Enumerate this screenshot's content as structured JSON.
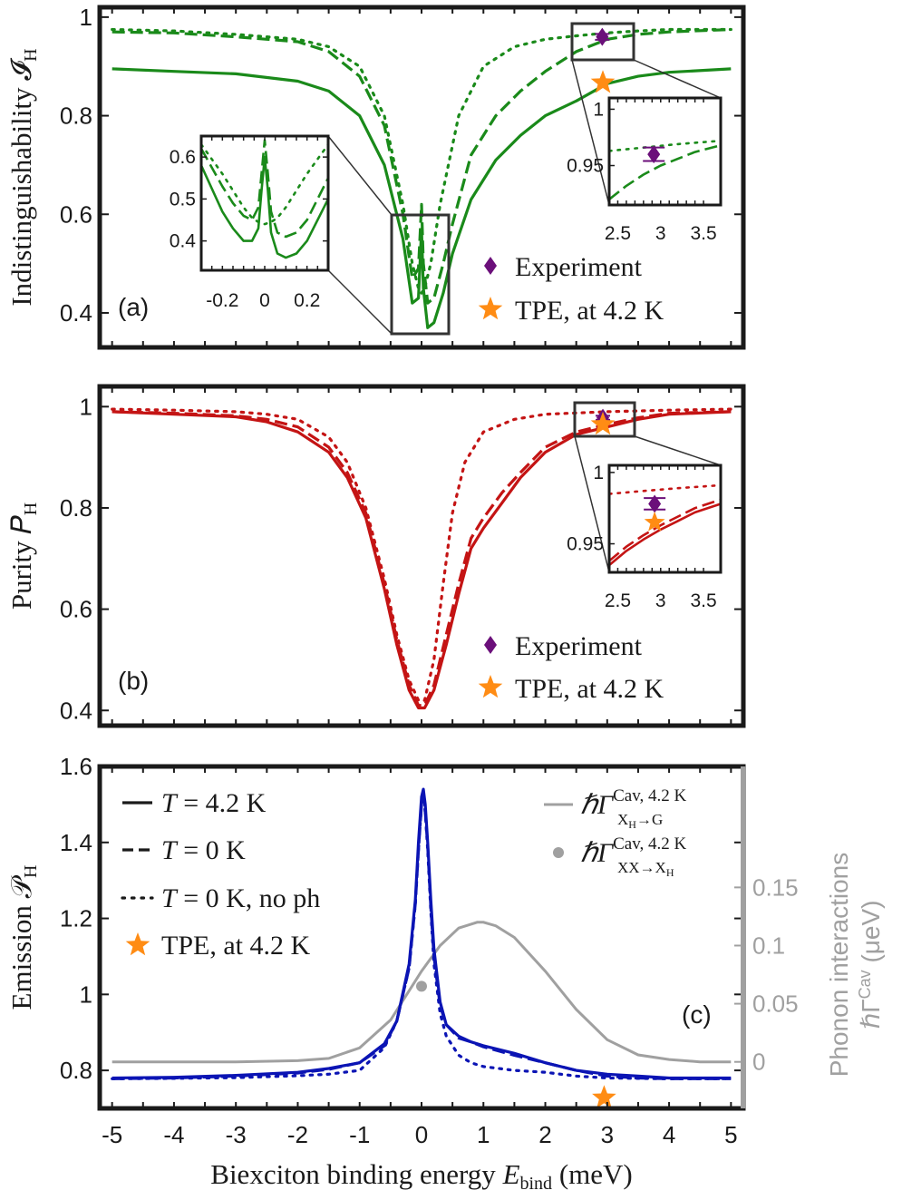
{
  "colors": {
    "green": "#1a8a1a",
    "red": "#c41414",
    "blue": "#0b14b4",
    "gray": "#a0a0a0",
    "purple": "#6b0f7a",
    "orange": "#ff8c14"
  },
  "chart_data": [
    {
      "type": "line",
      "panel_label": "(a)",
      "ylabel": "Indistinguishability 𝓘",
      "ylabel_sub": "H",
      "xlim": [
        -5.2,
        5.2
      ],
      "ylim": [
        0.33,
        1.02
      ],
      "yticks": [
        0.4,
        0.6,
        0.8,
        1
      ],
      "ytick_labels": [
        "0.4",
        "0.6",
        "0.8",
        "1"
      ],
      "series": [
        {
          "style": "solid",
          "x": [
            -5.0,
            -4.0,
            -3.0,
            -2.0,
            -1.5,
            -1.0,
            -0.6,
            -0.3,
            -0.15,
            -0.05,
            0.0,
            0.03,
            0.1,
            0.2,
            0.35,
            0.5,
            0.8,
            1.2,
            1.6,
            2.0,
            2.5,
            3.0,
            3.5,
            4.0,
            5.0
          ],
          "y": [
            0.895,
            0.89,
            0.885,
            0.87,
            0.85,
            0.8,
            0.7,
            0.55,
            0.42,
            0.43,
            0.57,
            0.45,
            0.37,
            0.38,
            0.44,
            0.52,
            0.63,
            0.71,
            0.76,
            0.8,
            0.83,
            0.865,
            0.88,
            0.888,
            0.895
          ]
        },
        {
          "style": "dashed",
          "x": [
            -5.0,
            -4.0,
            -3.0,
            -2.0,
            -1.5,
            -1.0,
            -0.6,
            -0.3,
            -0.15,
            -0.05,
            0.0,
            0.03,
            0.1,
            0.2,
            0.35,
            0.5,
            0.8,
            1.2,
            1.6,
            2.0,
            2.5,
            3.0,
            3.5,
            4.0,
            5.0
          ],
          "y": [
            0.97,
            0.968,
            0.96,
            0.95,
            0.93,
            0.88,
            0.78,
            0.6,
            0.47,
            0.49,
            0.62,
            0.5,
            0.42,
            0.43,
            0.5,
            0.58,
            0.72,
            0.8,
            0.85,
            0.89,
            0.93,
            0.955,
            0.965,
            0.97,
            0.975
          ]
        },
        {
          "style": "dotted",
          "x": [
            -5.0,
            -4.0,
            -3.0,
            -2.0,
            -1.5,
            -1.0,
            -0.6,
            -0.3,
            -0.15,
            -0.05,
            0.0,
            0.05,
            0.15,
            0.3,
            0.6,
            1.0,
            1.5,
            2.0,
            2.5,
            3.0,
            3.5,
            4.0,
            5.0
          ],
          "y": [
            0.975,
            0.972,
            0.965,
            0.955,
            0.94,
            0.9,
            0.8,
            0.62,
            0.5,
            0.45,
            0.44,
            0.45,
            0.5,
            0.62,
            0.8,
            0.9,
            0.94,
            0.955,
            0.962,
            0.968,
            0.972,
            0.975,
            0.975
          ]
        }
      ],
      "markers": [
        {
          "name": "Experiment",
          "shape": "diamond",
          "x": 2.92,
          "y": 0.96,
          "yerr": 0.006
        },
        {
          "name": "TPE, at 4.2 K",
          "shape": "star",
          "x": 2.93,
          "y": 0.867
        }
      ],
      "legend": {
        "position": "bottom-right",
        "entries": [
          "Experiment",
          "TPE, at 4.2 K"
        ]
      },
      "inset_left": {
        "xlim": [
          -0.3,
          0.3
        ],
        "ylim": [
          0.33,
          0.65
        ],
        "xticks": [
          -0.2,
          0,
          0.2
        ],
        "xtick_labels": [
          "-0.2",
          "0",
          "0.2"
        ],
        "yticks": [
          0.4,
          0.5,
          0.6
        ],
        "ytick_labels": [
          "0.4",
          "0.5",
          "0.6"
        ]
      },
      "inset_right": {
        "xlim": [
          2.4,
          3.7
        ],
        "ylim": [
          0.915,
          1.01
        ],
        "xticks": [
          2.5,
          3,
          3.5
        ],
        "xtick_labels": [
          "2.5",
          "3",
          "3.5"
        ],
        "yticks": [
          0.95,
          1
        ],
        "ytick_labels": [
          "0.95",
          "1"
        ]
      }
    },
    {
      "type": "line",
      "panel_label": "(b)",
      "ylabel": "Purity 𝑃",
      "ylabel_sub": "H",
      "xlim": [
        -5.2,
        5.2
      ],
      "ylim": [
        0.37,
        1.04
      ],
      "yticks": [
        0.4,
        0.6,
        0.8,
        1
      ],
      "ytick_labels": [
        "0.4",
        "0.6",
        "0.8",
        "1"
      ],
      "series": [
        {
          "style": "solid",
          "x": [
            -5.0,
            -4.0,
            -3.0,
            -2.5,
            -2.0,
            -1.5,
            -1.2,
            -0.9,
            -0.6,
            -0.4,
            -0.2,
            -0.05,
            0.05,
            0.2,
            0.4,
            0.6,
            0.8,
            1.0,
            1.3,
            1.6,
            2.0,
            2.5,
            3.0,
            3.5,
            4.0,
            5.0
          ],
          "y": [
            0.99,
            0.985,
            0.98,
            0.97,
            0.95,
            0.91,
            0.86,
            0.78,
            0.64,
            0.53,
            0.44,
            0.405,
            0.405,
            0.44,
            0.53,
            0.63,
            0.72,
            0.76,
            0.81,
            0.86,
            0.91,
            0.945,
            0.96,
            0.975,
            0.985,
            0.99
          ]
        },
        {
          "style": "dashed",
          "x": [
            -5.0,
            -4.0,
            -3.0,
            -2.5,
            -2.0,
            -1.5,
            -1.2,
            -0.9,
            -0.6,
            -0.4,
            -0.2,
            -0.05,
            0.05,
            0.2,
            0.4,
            0.6,
            0.8,
            1.0,
            1.3,
            1.6,
            2.0,
            2.5,
            3.0,
            3.5,
            4.0,
            5.0
          ],
          "y": [
            0.99,
            0.987,
            0.982,
            0.975,
            0.96,
            0.92,
            0.87,
            0.79,
            0.65,
            0.54,
            0.45,
            0.41,
            0.41,
            0.45,
            0.55,
            0.65,
            0.74,
            0.78,
            0.83,
            0.87,
            0.92,
            0.95,
            0.965,
            0.978,
            0.987,
            0.99
          ]
        },
        {
          "style": "dotted",
          "x": [
            -5.0,
            -4.0,
            -3.0,
            -2.5,
            -2.0,
            -1.5,
            -1.2,
            -0.9,
            -0.6,
            -0.4,
            -0.2,
            -0.05,
            0.05,
            0.2,
            0.35,
            0.5,
            0.7,
            1.0,
            1.5,
            2.0,
            3.0,
            4.0,
            5.0
          ],
          "y": [
            0.995,
            0.993,
            0.99,
            0.985,
            0.975,
            0.94,
            0.89,
            0.8,
            0.66,
            0.55,
            0.46,
            0.42,
            0.42,
            0.5,
            0.65,
            0.79,
            0.89,
            0.95,
            0.975,
            0.985,
            0.99,
            0.993,
            0.995
          ]
        }
      ],
      "markers": [
        {
          "name": "Experiment",
          "shape": "diamond",
          "x": 2.93,
          "y": 0.978,
          "yerr": 0.004
        },
        {
          "name": "TPE, at 4.2 K",
          "shape": "star",
          "x": 2.93,
          "y": 0.965
        }
      ],
      "legend": {
        "position": "bottom-right",
        "entries": [
          "Experiment",
          "TPE, at 4.2 K"
        ]
      },
      "inset_right": {
        "xlim": [
          2.4,
          3.7
        ],
        "ylim": [
          0.93,
          1.005
        ],
        "xticks": [
          2.5,
          3,
          3.5
        ],
        "xtick_labels": [
          "2.5",
          "3",
          "3.5"
        ],
        "yticks": [
          0.95,
          1
        ],
        "ytick_labels": [
          "0.95",
          "1"
        ]
      }
    },
    {
      "type": "line",
      "panel_label": "(c)",
      "ylabel": "Emission 𝒫",
      "ylabel_sub": "H",
      "xlabel": "Biexciton binding energy ",
      "xlabel_var": "E",
      "xlabel_sub": "bind",
      "xlabel_unit": " (meV)",
      "xlim": [
        -5.2,
        5.2
      ],
      "ylim": [
        0.7,
        1.6
      ],
      "yticks": [
        0.8,
        1,
        1.2,
        1.4,
        1.6
      ],
      "ytick_labels": [
        "0.8",
        "1",
        "1.2",
        "1.4",
        "1.6"
      ],
      "xticks": [
        -5,
        -4,
        -3,
        -2,
        -1,
        0,
        1,
        2,
        3,
        4,
        5
      ],
      "xtick_labels": [
        "-5",
        "-4",
        "-3",
        "-2",
        "-1",
        "0",
        "1",
        "2",
        "3",
        "4",
        "5"
      ],
      "y2label": "Phonon interactions",
      "y2label2": "ℏΓ",
      "y2label2_sup": "Cav",
      "y2label2_unit": " (μeV)",
      "y2lim": [
        -0.04,
        0.254
      ],
      "y2ticks": [
        0,
        0.05,
        0.1,
        0.15
      ],
      "y2tick_labels": [
        "0",
        "0.05",
        "0.1",
        "0.15"
      ],
      "series": [
        {
          "name": "T = 4.2 K",
          "style": "solid",
          "x": [
            -5.0,
            -4.0,
            -3.0,
            -2.0,
            -1.5,
            -1.0,
            -0.6,
            -0.4,
            -0.2,
            -0.1,
            -0.05,
            0.0,
            0.03,
            0.06,
            0.1,
            0.15,
            0.2,
            0.3,
            0.4,
            0.6,
            0.8,
            1.0,
            1.5,
            2.0,
            2.5,
            3.0,
            3.5,
            4.0,
            5.0
          ],
          "y": [
            0.78,
            0.782,
            0.787,
            0.795,
            0.805,
            0.82,
            0.87,
            0.93,
            1.08,
            1.25,
            1.4,
            1.52,
            1.54,
            1.5,
            1.4,
            1.25,
            1.12,
            0.98,
            0.92,
            0.89,
            0.875,
            0.865,
            0.845,
            0.82,
            0.8,
            0.79,
            0.785,
            0.78,
            0.78
          ]
        },
        {
          "name": "T = 0 K",
          "style": "dashed",
          "x": [
            -5.0,
            -4.0,
            -3.0,
            -2.0,
            -1.5,
            -1.0,
            -0.6,
            -0.4,
            -0.2,
            -0.1,
            -0.05,
            0.0,
            0.03,
            0.06,
            0.1,
            0.15,
            0.2,
            0.3,
            0.4,
            0.6,
            0.8,
            1.0,
            1.5,
            2.0,
            2.5,
            3.0,
            3.5,
            4.0,
            5.0
          ],
          "y": [
            0.778,
            0.78,
            0.785,
            0.793,
            0.803,
            0.82,
            0.865,
            0.93,
            1.07,
            1.24,
            1.38,
            1.5,
            1.52,
            1.48,
            1.39,
            1.23,
            1.1,
            0.97,
            0.92,
            0.885,
            0.875,
            0.862,
            0.84,
            0.82,
            0.8,
            0.785,
            0.78,
            0.778,
            0.778
          ]
        },
        {
          "name": "T = 0 K, no ph",
          "style": "dotted",
          "x": [
            -5.0,
            -4.0,
            -3.0,
            -2.0,
            -1.5,
            -1.0,
            -0.6,
            -0.4,
            -0.2,
            -0.1,
            -0.05,
            0.0,
            0.03,
            0.06,
            0.1,
            0.15,
            0.2,
            0.3,
            0.4,
            0.6,
            0.8,
            1.0,
            1.5,
            2.0,
            2.5,
            3.0,
            4.0,
            5.0
          ],
          "y": [
            0.778,
            0.779,
            0.781,
            0.786,
            0.79,
            0.8,
            0.86,
            0.93,
            1.07,
            1.24,
            1.38,
            1.5,
            1.52,
            1.48,
            1.38,
            1.22,
            1.08,
            0.95,
            0.89,
            0.84,
            0.82,
            0.81,
            0.8,
            0.795,
            0.785,
            0.78,
            0.778,
            0.778
          ]
        }
      ],
      "gray_series": {
        "name": "ℏΓ X_H→G",
        "axis": "right",
        "x": [
          -5.0,
          -4.0,
          -3.0,
          -2.0,
          -1.5,
          -1.0,
          -0.5,
          0.0,
          0.3,
          0.6,
          0.9,
          1.0,
          1.2,
          1.5,
          2.0,
          2.5,
          3.0,
          3.5,
          4.0,
          4.5,
          5.0
        ],
        "y": [
          0.0,
          0.0,
          0.0,
          0.001,
          0.003,
          0.012,
          0.036,
          0.078,
          0.1,
          0.115,
          0.12,
          0.12,
          0.117,
          0.107,
          0.078,
          0.045,
          0.019,
          0.006,
          0.002,
          0.0,
          0.0
        ]
      },
      "gray_point": {
        "name": "ℏΓ XX→X_H",
        "axis": "right",
        "x": 0.0,
        "y": 0.065
      },
      "markers": [
        {
          "name": "TPE, at 4.2 K",
          "shape": "star",
          "x": 2.95,
          "y": 0.728
        }
      ],
      "legend_left": {
        "position": "top-left",
        "entries": [
          {
            "style": "solid",
            "prefix": "T",
            "text": " = 4.2 K"
          },
          {
            "style": "dashed",
            "prefix": "T",
            "text": " = 0 K"
          },
          {
            "style": "dotted",
            "prefix": "T",
            "text": " = 0 K, no ph"
          },
          {
            "style": "star",
            "prefix": "",
            "text": "TPE, at 4.2 K"
          }
        ]
      },
      "legend_right": {
        "position": "top-right",
        "entries": [
          {
            "style": "line",
            "base": "ℏΓ",
            "sup": "Cav, 4.2 K",
            "sub": "X",
            "sub2": "H",
            "sub3": "→G"
          },
          {
            "style": "dot",
            "base": "ℏΓ",
            "sup": "Cav, 4.2 K",
            "sub": "XX→X",
            "sub2": "H",
            "sub3": ""
          }
        ]
      }
    }
  ]
}
